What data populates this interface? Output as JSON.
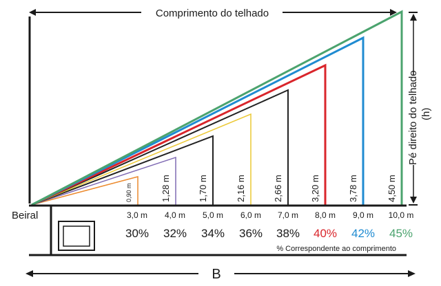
{
  "labels": {
    "roof_length": "Comprimento do telhado",
    "roof_height": "Pé direito do telhado",
    "h": "(h)",
    "eave": "Beiral",
    "percent_note": "% Correspondente ao comprimento",
    "base": "B"
  },
  "rows": [
    {
      "length": "3,0 m",
      "height": "0,90 m",
      "percent": "30%",
      "color": "#ec8a2e"
    },
    {
      "length": "4,0 m",
      "height": "1,28 m",
      "percent": "32%",
      "color": "#7f6ab3"
    },
    {
      "length": "5,0 m",
      "height": "1,70 m",
      "percent": "34%",
      "color": "#222222"
    },
    {
      "length": "6,0 m",
      "height": "2,16 m",
      "percent": "36%",
      "color": "#ecc834"
    },
    {
      "length": "7,0 m",
      "height": "2,66 m",
      "percent": "38%",
      "color": "#222222"
    },
    {
      "length": "8,0 m",
      "height": "3,20 m",
      "percent": "40%",
      "color": "#d9252b"
    },
    {
      "length": "9,0 m",
      "height": "3,78 m",
      "percent": "42%",
      "color": "#1f8bd1"
    },
    {
      "length": "10,0 m",
      "height": "4,50 m",
      "percent": "45%",
      "color": "#4ba36e"
    }
  ],
  "colors": {
    "line": "#1a1a1a",
    "percent_text": "#1a1a1a"
  }
}
